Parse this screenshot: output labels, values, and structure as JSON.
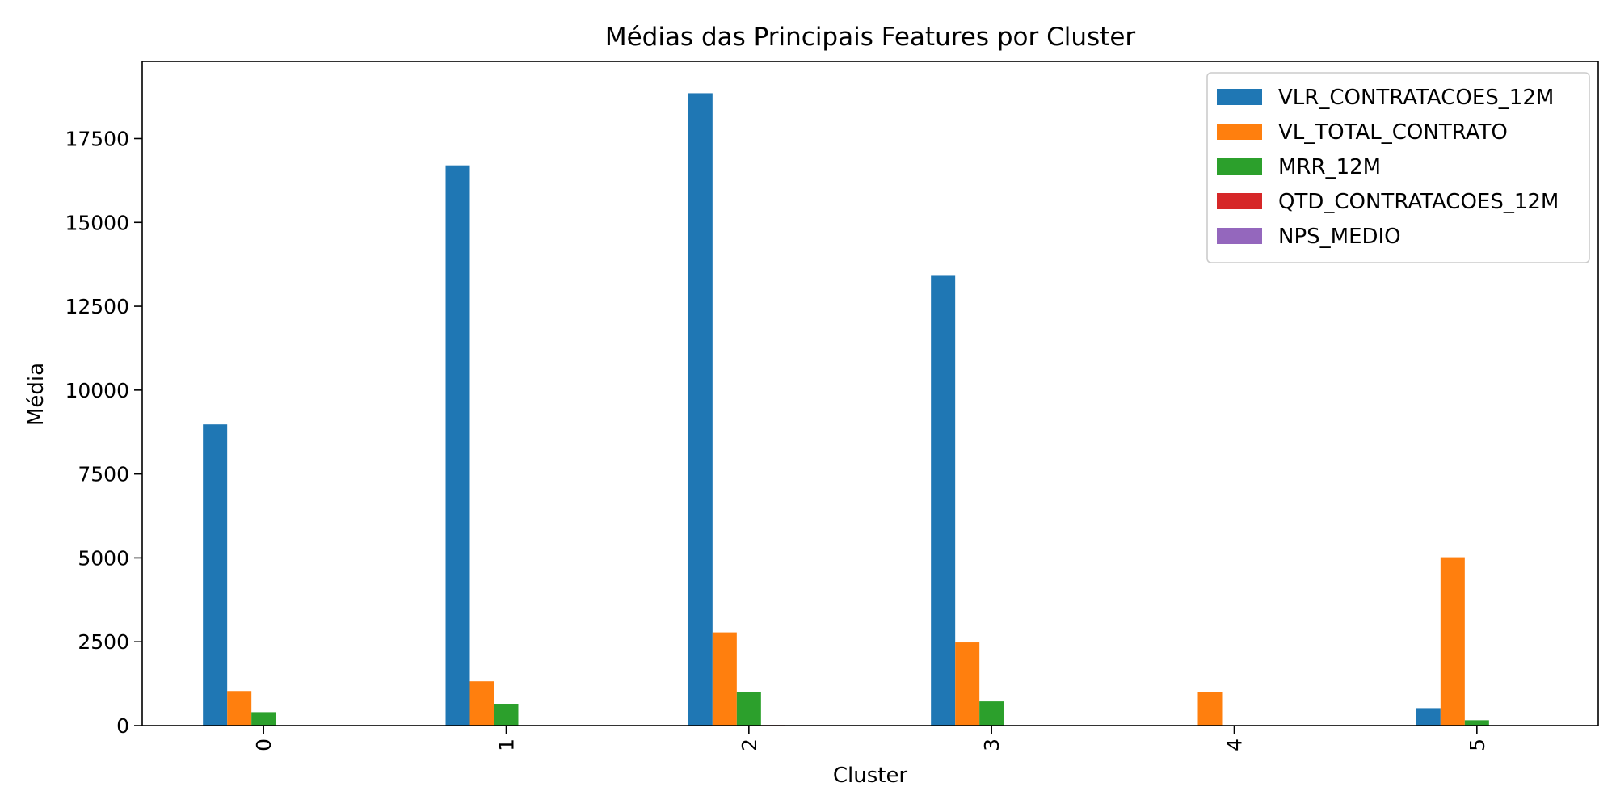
{
  "chart_data": {
    "type": "bar",
    "title": "Médias das Principais Features por Cluster",
    "xlabel": "Cluster",
    "ylabel": "Média",
    "categories": [
      "0",
      "1",
      "2",
      "3",
      "4",
      "5"
    ],
    "ylim": [
      0,
      19800
    ],
    "yticks": [
      0,
      2500,
      5000,
      7500,
      10000,
      12500,
      15000,
      17500
    ],
    "legend_position": "top-right",
    "series": [
      {
        "name": "VLR_CONTRATACOES_12M",
        "color": "#1f77b4",
        "values": [
          8980,
          16700,
          18850,
          13430,
          0,
          520
        ]
      },
      {
        "name": "VL_TOTAL_CONTRATO",
        "color": "#ff7f0e",
        "values": [
          1030,
          1320,
          2780,
          2480,
          1010,
          5020
        ]
      },
      {
        "name": "MRR_12M",
        "color": "#2ca02c",
        "values": [
          400,
          650,
          1010,
          720,
          0,
          160
        ]
      },
      {
        "name": "QTD_CONTRATACOES_12M",
        "color": "#d62728",
        "values": [
          5,
          10,
          15,
          12,
          0,
          3
        ]
      },
      {
        "name": "NPS_MEDIO",
        "color": "#9467bd",
        "values": [
          8,
          8,
          8,
          8,
          0,
          8
        ]
      }
    ]
  }
}
